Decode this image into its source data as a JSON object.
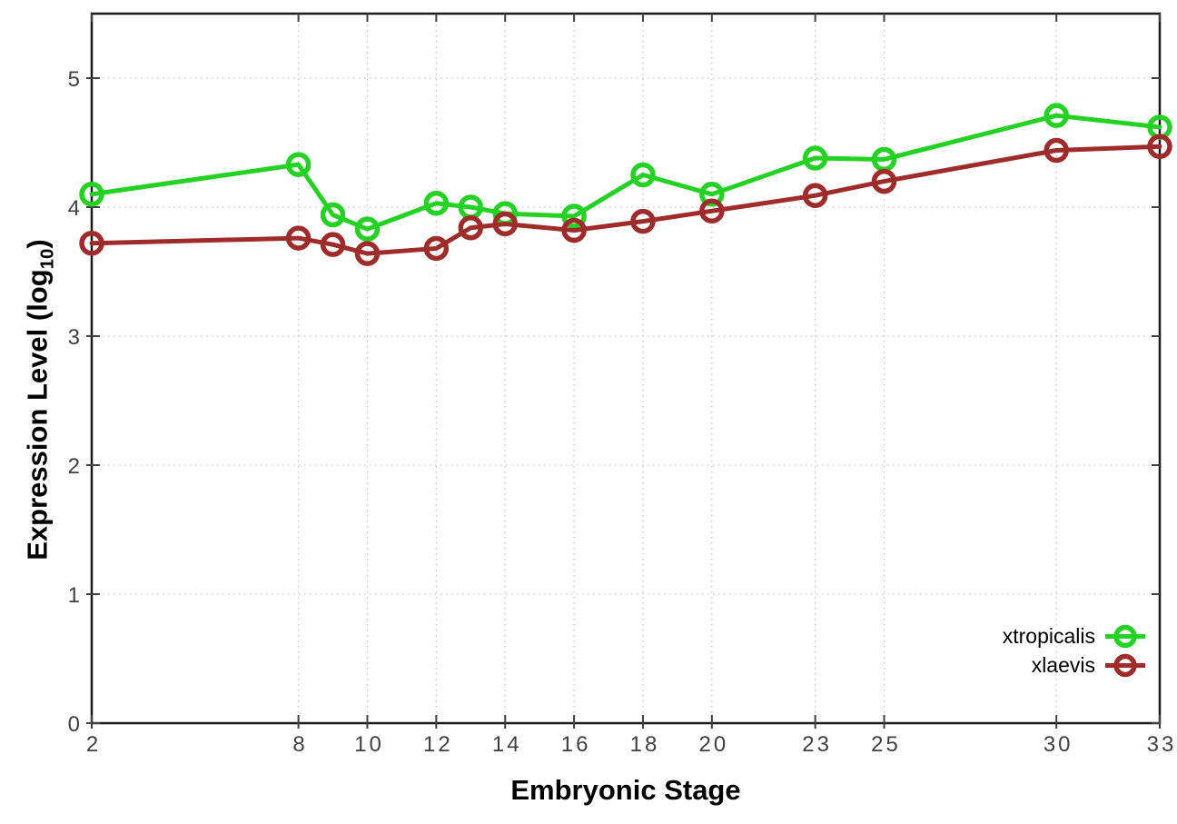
{
  "chart_data": {
    "type": "line",
    "title": "",
    "xlabel": "Embryonic Stage",
    "ylabel": {
      "text": "Expression Level (log",
      "sub": "10",
      "suffix": ")"
    },
    "x": [
      2,
      8,
      9,
      10,
      12,
      13,
      14,
      16,
      18,
      20,
      23,
      25,
      30,
      33
    ],
    "series": [
      {
        "name": "xtropicalis",
        "color": "#24d224",
        "values": [
          4.1,
          4.33,
          3.94,
          3.83,
          4.03,
          4.0,
          3.95,
          3.93,
          4.25,
          4.1,
          4.38,
          4.37,
          4.71,
          4.62
        ]
      },
      {
        "name": "xlaevis",
        "color": "#a02b2b",
        "values": [
          3.72,
          3.76,
          3.71,
          3.64,
          3.68,
          3.84,
          3.87,
          3.82,
          3.89,
          3.97,
          4.09,
          4.2,
          4.44,
          4.47
        ]
      }
    ],
    "xticks": [
      2,
      8,
      10,
      12,
      14,
      16,
      18,
      20,
      23,
      25,
      30,
      33
    ],
    "yticks": [
      0,
      1,
      2,
      3,
      4,
      5
    ],
    "xlim": [
      2,
      33
    ],
    "ylim": [
      0,
      5.5
    ],
    "grid": true,
    "legend_position": "bottom-right-inside",
    "grid_color": "#c6c6c6",
    "axis_color": "#1a1a1a",
    "tick_color": "#404040"
  }
}
